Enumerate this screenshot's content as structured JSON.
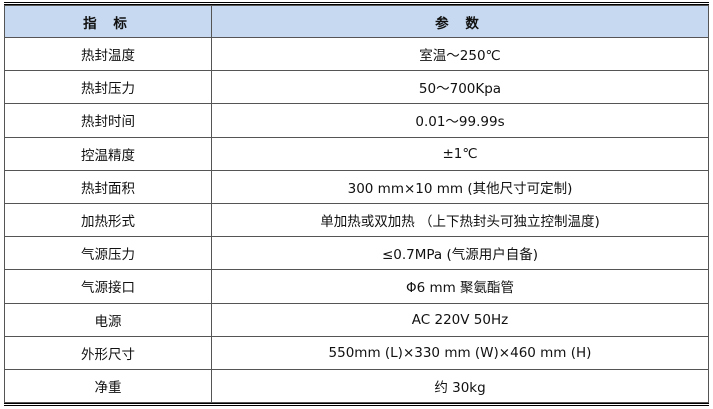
{
  "table": {
    "headers": [
      "指 标",
      "参 数"
    ],
    "rows": [
      [
        "热封温度",
        "室温～250℃"
      ],
      [
        "热封压力",
        "50～700Kpa"
      ],
      [
        "热封时间",
        "0.01～99.99s"
      ],
      [
        "控温精度",
        "±1℃"
      ],
      [
        "热封面积",
        "300 mm×10 mm (其他尺寸可定制)"
      ],
      [
        "加热形式",
        "单加热或双加热 （上下热封头可独立控制温度)"
      ],
      [
        "气源压力",
        "≤0.7MPa (气源用户自备)"
      ],
      [
        "气源接口",
        "Φ6 mm 聚氨酯管"
      ],
      [
        "电源",
        "AC 220V 50Hz"
      ],
      [
        "外形尺寸",
        "550mm (L)×330 mm (W)×460 mm (H)"
      ],
      [
        "净重",
        "约 30kg"
      ]
    ]
  },
  "colors": {
    "header_bg": "#c6d9f0"
  }
}
